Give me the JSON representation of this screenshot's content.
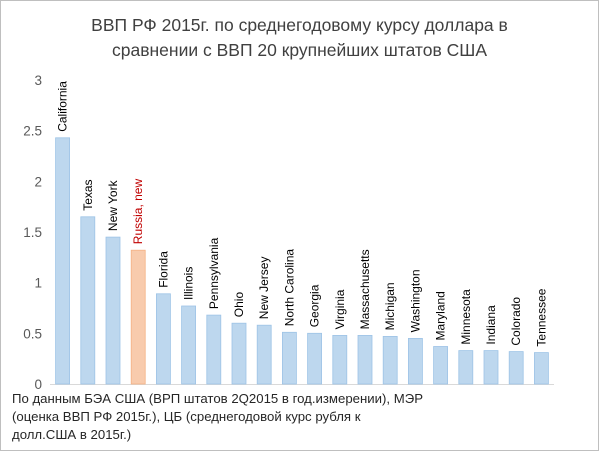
{
  "chart_data": {
    "type": "bar",
    "title_lines": [
      "ВВП РФ 2015г. по среднегодовому курсу доллара в",
      "сравнении с ВВП 20 крупнейших штатов США"
    ],
    "categories": [
      "California",
      "Texas",
      "New York",
      "Russia, new",
      "Florida",
      "Illinois",
      "Pennsylvania",
      "Ohio",
      "New Jersey",
      "North Carolina",
      "Georgia",
      "Virginia",
      "Massachusetts",
      "Michigan",
      "Washington",
      "Maryland",
      "Minnesota",
      "Indiana",
      "Colorado",
      "Tennessee"
    ],
    "values": [
      2.43,
      1.65,
      1.45,
      1.32,
      0.89,
      0.77,
      0.68,
      0.6,
      0.58,
      0.51,
      0.5,
      0.48,
      0.48,
      0.47,
      0.45,
      0.37,
      0.33,
      0.33,
      0.32,
      0.31
    ],
    "highlight_category": "Russia, new",
    "yticks": [
      "0",
      "0.5",
      "1",
      "1.5",
      "2",
      "2.5",
      "3"
    ],
    "ylim": [
      0,
      3
    ],
    "grid": false,
    "colors": {
      "bar": "#bdd7ee",
      "bar_stroke": "#9dc3e6",
      "highlight": "#f8cbad",
      "highlight_stroke": "#f4b183",
      "label": "#000000",
      "highlight_label": "#c00000",
      "axis": "#d9d9d9",
      "tick_text": "#595959"
    }
  },
  "note_lines": [
    "По данным БЭА США (ВРП штатов 2Q2015 в год.измерении),  МЭР",
    "(оценка ВВП РФ 2015г.), ЦБ (среднегодовой курс рубля к",
    "долл.США в 2015г.)"
  ]
}
